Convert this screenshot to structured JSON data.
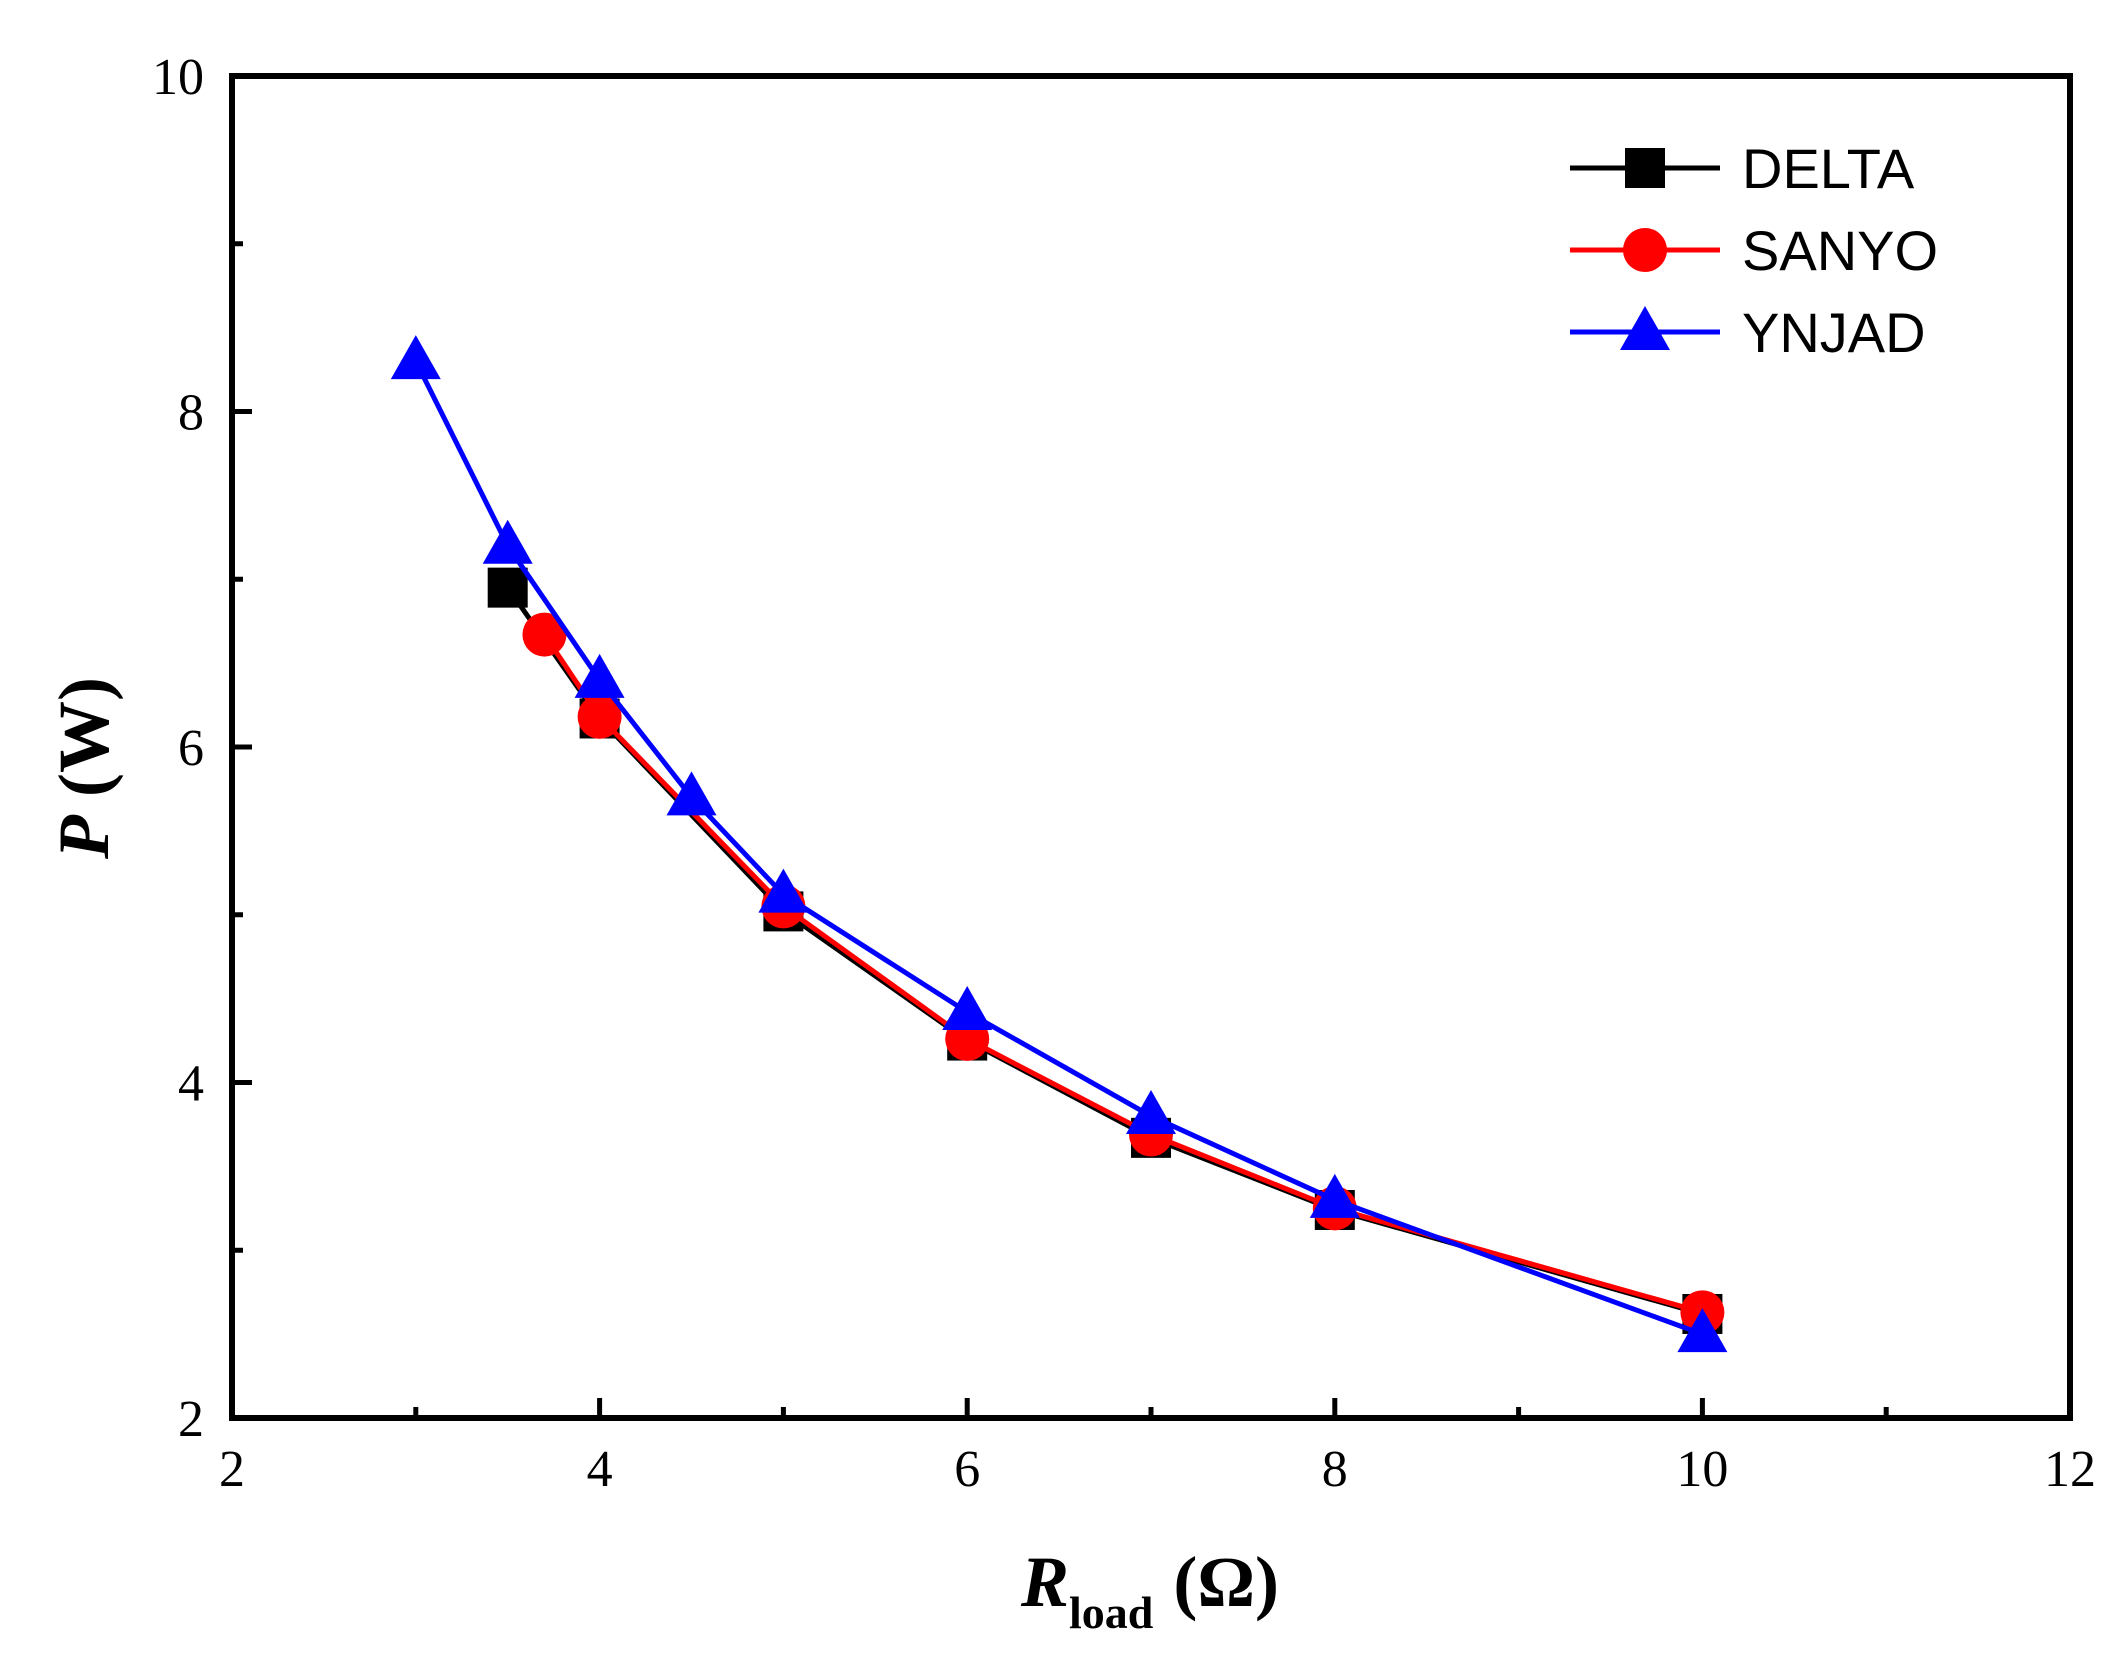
{
  "chart_data": {
    "type": "line",
    "title": "",
    "xlabel": {
      "main": "R",
      "sub": "load",
      "unit": "(Ω)"
    },
    "ylabel": {
      "main": "P",
      "unit": "(W)"
    },
    "xlim": [
      2,
      12
    ],
    "ylim": [
      2,
      10
    ],
    "x_major_ticks": [
      2,
      4,
      6,
      8,
      10,
      12
    ],
    "x_tick_labels": [
      "2",
      "4",
      "6",
      "8",
      "10",
      "12"
    ],
    "x_minor_ticks": [
      3,
      5,
      7,
      9,
      11
    ],
    "y_major_ticks": [
      2,
      4,
      6,
      8,
      10
    ],
    "y_tick_labels": [
      "2",
      "4",
      "6",
      "8",
      "10"
    ],
    "y_minor_ticks": [
      3,
      5,
      7,
      9
    ],
    "grid": false,
    "legend_position": "top-right",
    "series": [
      {
        "name": "DELTA",
        "color": "#000000",
        "marker": "square",
        "x": [
          3.5,
          4,
          5,
          6,
          7,
          8,
          10
        ],
        "y": [
          6.95,
          6.17,
          5.02,
          4.25,
          3.67,
          3.24,
          2.62
        ]
      },
      {
        "name": "SANYO",
        "color": "#ff0000",
        "marker": "circle",
        "x": [
          3.7,
          4,
          5,
          6,
          7,
          8,
          10
        ],
        "y": [
          6.67,
          6.18,
          5.05,
          4.26,
          3.69,
          3.25,
          2.63
        ]
      },
      {
        "name": "YNJAD",
        "color": "#0000ff",
        "marker": "triangle",
        "x": [
          3,
          3.5,
          4,
          4.5,
          5,
          6,
          7,
          8,
          10
        ],
        "y": [
          8.3,
          7.2,
          6.4,
          5.7,
          5.12,
          4.42,
          3.8,
          3.3,
          2.5
        ]
      }
    ]
  }
}
